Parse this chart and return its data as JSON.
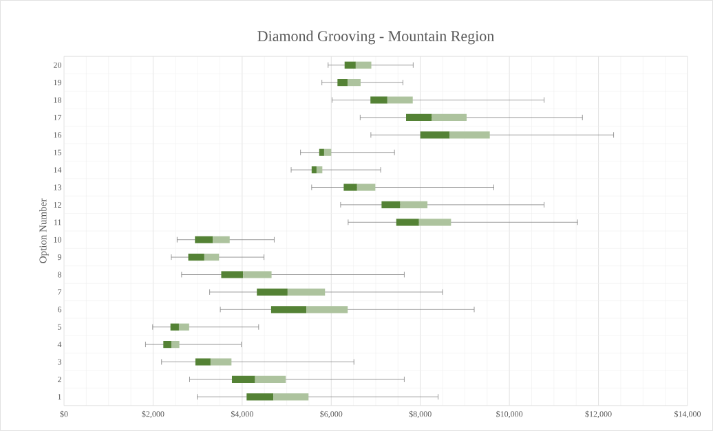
{
  "chart_data": {
    "type": "box",
    "orientation": "horizontal",
    "title": "Diamond Grooving - Mountain Region",
    "ylabel": "Option Number",
    "categories": [
      "20",
      "19",
      "18",
      "17",
      "16",
      "15",
      "14",
      "13",
      "12",
      "11",
      "10",
      "9",
      "8",
      "7",
      "6",
      "5",
      "4",
      "3",
      "2",
      "1"
    ],
    "series": [
      {
        "color": "#548235",
        "boxes": [
          {
            "low": 5930,
            "q1": 6300,
            "median": 6550,
            "q3": 6900,
            "high": 7840
          },
          {
            "low": 5790,
            "q1": 6140,
            "median": 6370,
            "q3": 6660,
            "high": 7610
          },
          {
            "low": 6020,
            "q1": 6880,
            "median": 7260,
            "q3": 7830,
            "high": 10780
          },
          {
            "low": 6650,
            "q1": 7680,
            "median": 8260,
            "q3": 9040,
            "high": 11640
          },
          {
            "low": 6890,
            "q1": 8000,
            "median": 8660,
            "q3": 9560,
            "high": 12340
          },
          {
            "low": 5310,
            "q1": 5730,
            "median": 5840,
            "q3": 6000,
            "high": 7420
          },
          {
            "low": 5100,
            "q1": 5560,
            "median": 5670,
            "q3": 5800,
            "high": 7110
          },
          {
            "low": 5560,
            "q1": 6280,
            "median": 6580,
            "q3": 6990,
            "high": 9650
          },
          {
            "low": 6210,
            "q1": 7130,
            "median": 7550,
            "q3": 8160,
            "high": 10780
          },
          {
            "low": 6380,
            "q1": 7460,
            "median": 7970,
            "q3": 8690,
            "high": 11530
          },
          {
            "low": 2540,
            "q1": 2940,
            "median": 3340,
            "q3": 3720,
            "high": 4720
          },
          {
            "low": 2410,
            "q1": 2790,
            "median": 3150,
            "q3": 3480,
            "high": 4490
          },
          {
            "low": 2640,
            "q1": 3530,
            "median": 4020,
            "q3": 4660,
            "high": 7640
          },
          {
            "low": 3270,
            "q1": 4330,
            "median": 5020,
            "q3": 5860,
            "high": 8500
          },
          {
            "low": 3510,
            "q1": 4650,
            "median": 5440,
            "q3": 6370,
            "high": 9210
          },
          {
            "low": 1990,
            "q1": 2390,
            "median": 2580,
            "q3": 2810,
            "high": 4370
          },
          {
            "low": 1830,
            "q1": 2230,
            "median": 2410,
            "q3": 2590,
            "high": 3980
          },
          {
            "low": 2190,
            "q1": 2950,
            "median": 3290,
            "q3": 3760,
            "high": 6510
          },
          {
            "low": 2820,
            "q1": 3770,
            "median": 4290,
            "q3": 4980,
            "high": 7640
          },
          {
            "low": 2990,
            "q1": 4100,
            "median": 4700,
            "q3": 5490,
            "high": 8400
          }
        ]
      }
    ],
    "xlim": [
      0,
      14000
    ],
    "xticks": [
      {
        "value": 0,
        "label": "$0"
      },
      {
        "value": 2000,
        "label": "$2,000"
      },
      {
        "value": 4000,
        "label": "$4,000"
      },
      {
        "value": 6000,
        "label": "$6,000"
      },
      {
        "value": 8000,
        "label": "$8,000"
      },
      {
        "value": 10000,
        "label": "$10,000"
      },
      {
        "value": 12000,
        "label": "$12,000"
      },
      {
        "value": 14000,
        "label": "$14,000"
      }
    ],
    "grid": true
  }
}
